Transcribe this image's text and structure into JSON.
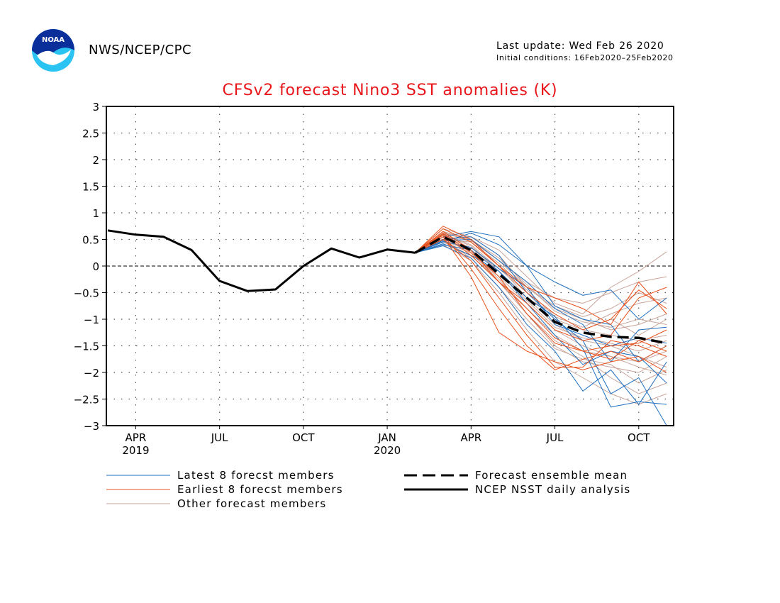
{
  "header": {
    "org": "NWS/NCEP/CPC",
    "last_update": "Last update: Wed Feb 26 2020",
    "initial_conditions": "Initial conditions: 16Feb2020–25Feb2020",
    "logo_icon": "noaa-logo-icon",
    "logo_text": "NOAA"
  },
  "chart_data": {
    "type": "line",
    "title": "CFSv2 forecast Nino3 SST anomalies (K)",
    "ylim": [
      -3,
      3
    ],
    "yticks": [
      3,
      2.5,
      2,
      1.5,
      1,
      0.5,
      0,
      -0.5,
      -1,
      -1.5,
      -2,
      -2.5,
      -3
    ],
    "ytick_labels": [
      "3",
      "2.5",
      "2",
      "1.5",
      "1",
      "0.5",
      "0",
      "−0.5",
      "−1",
      "−1.5",
      "−2",
      "−2.5",
      "−3"
    ],
    "x_range": [
      "2019-03",
      "2020-11"
    ],
    "x_ticks": [
      {
        "month": "2019-04",
        "label": "APR",
        "year": "2019"
      },
      {
        "month": "2019-07",
        "label": "JUL",
        "year": ""
      },
      {
        "month": "2019-10",
        "label": "OCT",
        "year": ""
      },
      {
        "month": "2020-01",
        "label": "JAN",
        "year": "2020"
      },
      {
        "month": "2020-04",
        "label": "APR",
        "year": ""
      },
      {
        "month": "2020-07",
        "label": "JUL",
        "year": ""
      },
      {
        "month": "2020-10",
        "label": "OCT",
        "year": ""
      }
    ],
    "grid": true,
    "zero_line": true,
    "analysis": {
      "name": "NCEP NSST daily analysis",
      "color": "#000000",
      "months": [
        "2019-03",
        "2019-04",
        "2019-05",
        "2019-06",
        "2019-07",
        "2019-08",
        "2019-09",
        "2019-10",
        "2019-11",
        "2019-12",
        "2020-01",
        "2020-02"
      ],
      "values": [
        0.67,
        0.59,
        0.55,
        0.3,
        -0.28,
        -0.47,
        -0.44,
        0.0,
        0.33,
        0.16,
        0.31,
        0.25
      ]
    },
    "ensemble_mean": {
      "name": "Forecast ensemble mean",
      "color": "#000000",
      "months": [
        "2020-02",
        "2020-03",
        "2020-04",
        "2020-05",
        "2020-06",
        "2020-07",
        "2020-08",
        "2020-09",
        "2020-10",
        "2020-11"
      ],
      "values": [
        0.25,
        0.55,
        0.3,
        -0.15,
        -0.6,
        -1.05,
        -1.25,
        -1.33,
        -1.35,
        -1.45
      ]
    },
    "forecast_months": [
      "2020-02",
      "2020-03",
      "2020-04",
      "2020-05",
      "2020-06",
      "2020-07",
      "2020-08",
      "2020-09",
      "2020-10",
      "2020-11"
    ],
    "latest_members": {
      "name": "Latest 8 forecst members",
      "color": "#1f6fbf",
      "members": [
        [
          0.25,
          0.45,
          0.62,
          0.4,
          0.0,
          -0.3,
          -0.55,
          -0.45,
          -1.0,
          -0.6
        ],
        [
          0.25,
          0.4,
          0.3,
          -0.1,
          -0.6,
          -0.95,
          -1.55,
          -2.65,
          -2.55,
          -2.6
        ],
        [
          0.25,
          0.5,
          0.55,
          0.2,
          -0.5,
          -1.0,
          -1.4,
          -2.4,
          -2.1,
          -3.0
        ],
        [
          0.25,
          0.55,
          0.65,
          0.55,
          0.0,
          -0.75,
          -1.0,
          -1.1,
          -1.8,
          -1.5
        ],
        [
          0.25,
          0.42,
          0.2,
          -0.1,
          -0.7,
          -1.3,
          -1.85,
          -1.6,
          -1.7,
          -2.2
        ],
        [
          0.25,
          0.48,
          0.5,
          0.1,
          -0.3,
          -0.8,
          -1.1,
          -1.8,
          -1.2,
          -1.15
        ],
        [
          0.25,
          0.38,
          0.15,
          -0.4,
          -1.1,
          -1.6,
          -2.35,
          -1.95,
          -2.6,
          -1.8
        ],
        [
          0.25,
          0.46,
          0.35,
          -0.05,
          -0.4,
          -1.1,
          -1.3,
          -1.5,
          -1.35,
          -1.45
        ]
      ]
    },
    "earliest_members": {
      "name": "Earliest 8 forecst members",
      "color": "#e8501b",
      "members": [
        [
          0.25,
          0.6,
          0.2,
          -0.3,
          -0.8,
          -1.35,
          -1.6,
          -1.75,
          -1.4,
          -1.6
        ],
        [
          0.25,
          0.7,
          0.45,
          0.0,
          -0.5,
          -0.9,
          -1.2,
          -1.0,
          -0.45,
          -0.8
        ],
        [
          0.25,
          0.55,
          -0.2,
          -1.25,
          -1.6,
          -1.8,
          -1.95,
          -1.8,
          -1.7,
          -2.0
        ],
        [
          0.25,
          0.65,
          0.3,
          -0.3,
          -0.7,
          -1.2,
          -1.4,
          -1.3,
          -0.6,
          -0.4
        ],
        [
          0.25,
          0.5,
          0.1,
          -0.6,
          -1.3,
          -1.9,
          -1.9,
          -1.4,
          -1.5,
          -1.7
        ],
        [
          0.25,
          0.75,
          0.5,
          0.0,
          -0.4,
          -0.6,
          -0.8,
          -1.1,
          -0.3,
          -0.9
        ],
        [
          0.25,
          0.58,
          -0.05,
          -0.8,
          -1.5,
          -1.95,
          -1.75,
          -1.6,
          -1.8,
          -1.5
        ],
        [
          0.25,
          0.62,
          0.25,
          -0.2,
          -0.9,
          -1.45,
          -1.6,
          -1.5,
          -1.45,
          -1.2
        ]
      ]
    },
    "other_members": {
      "name": "Other forecast members",
      "color": "#c8a49a",
      "members": [
        [
          0.25,
          0.5,
          0.45,
          0.0,
          -0.6,
          -1.1,
          -1.4,
          -1.5,
          -1.7,
          -1.9
        ],
        [
          0.25,
          0.6,
          0.55,
          0.3,
          -0.2,
          -0.7,
          -0.9,
          -0.4,
          -0.1,
          0.27
        ],
        [
          0.25,
          0.45,
          0.2,
          -0.3,
          -0.9,
          -1.4,
          -1.7,
          -2.1,
          -2.4,
          -2.2
        ],
        [
          0.25,
          0.55,
          0.35,
          -0.1,
          -0.6,
          -0.9,
          -1.2,
          -1.0,
          -1.3,
          -1.0
        ],
        [
          0.25,
          0.65,
          0.5,
          0.1,
          -0.3,
          -0.6,
          -0.7,
          -0.5,
          -0.3,
          -0.2
        ],
        [
          0.25,
          0.4,
          0.1,
          -0.5,
          -1.2,
          -1.8,
          -2.1,
          -2.4,
          -2.6,
          -2.4
        ],
        [
          0.25,
          0.7,
          0.55,
          0.2,
          -0.4,
          -0.8,
          -1.0,
          -1.2,
          -1.1,
          -0.9
        ],
        [
          0.25,
          0.5,
          0.3,
          -0.2,
          -0.7,
          -1.2,
          -1.5,
          -1.7,
          -1.8,
          -1.6
        ],
        [
          0.25,
          0.6,
          0.4,
          -0.05,
          -0.5,
          -1.0,
          -1.2,
          -1.3,
          -1.4,
          -1.3
        ],
        [
          0.25,
          0.45,
          0.25,
          -0.3,
          -0.9,
          -1.5,
          -1.8,
          -1.9,
          -2.0,
          -1.7
        ],
        [
          0.25,
          0.55,
          0.5,
          0.15,
          -0.35,
          -0.85,
          -1.05,
          -1.15,
          -1.0,
          -1.1
        ],
        [
          0.25,
          0.5,
          0.15,
          -0.4,
          -1.0,
          -1.55,
          -1.75,
          -1.85,
          -2.2,
          -1.95
        ],
        [
          0.25,
          0.65,
          0.45,
          0.05,
          -0.45,
          -0.95,
          -1.15,
          -0.9,
          -0.7,
          -0.6
        ],
        [
          0.25,
          0.58,
          0.38,
          -0.1,
          -0.65,
          -1.15,
          -1.35,
          -1.45,
          -1.6,
          -1.4
        ],
        [
          0.25,
          0.48,
          0.28,
          -0.25,
          -0.8,
          -1.3,
          -1.6,
          -1.7,
          -1.9,
          -2.05
        ],
        [
          0.25,
          0.62,
          0.48,
          0.1,
          -0.4,
          -0.75,
          -0.95,
          -0.8,
          -0.5,
          -0.7
        ]
      ]
    },
    "legend": {
      "left": [
        {
          "key": "latest",
          "label": "Latest 8 forecst members",
          "color": "#1f6fbf",
          "style": "thin"
        },
        {
          "key": "earliest",
          "label": "Earliest 8 forecst members",
          "color": "#e8501b",
          "style": "thin"
        },
        {
          "key": "other",
          "label": "Other forecast members",
          "color": "#c8a49a",
          "style": "thin"
        }
      ],
      "right": [
        {
          "key": "mean",
          "label": "Forecast ensemble mean",
          "color": "#000000",
          "style": "dashed"
        },
        {
          "key": "analysis",
          "label": "NCEP NSST daily analysis",
          "color": "#000000",
          "style": "solid"
        }
      ]
    }
  }
}
